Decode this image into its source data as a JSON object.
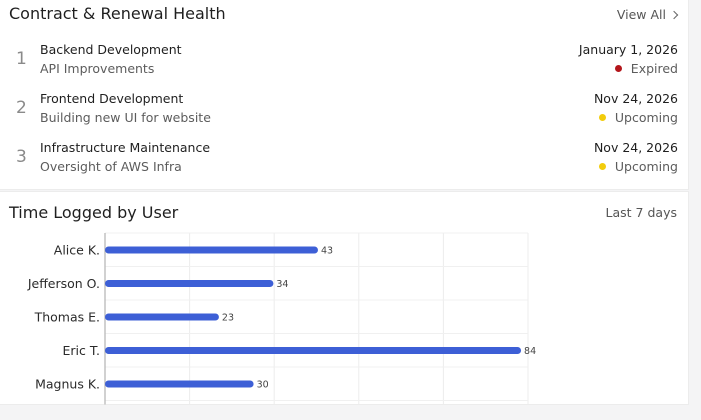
{
  "contracts": {
    "title": "Contract & Renewal Health",
    "view_all": "View All",
    "items": [
      {
        "index": "1",
        "name": "Backend Development",
        "desc": "API Improvements",
        "date": "January 1, 2026",
        "status": "Expired",
        "status_color": "#b3161b"
      },
      {
        "index": "2",
        "name": "Frontend Development",
        "desc": "Building new UI for website",
        "date": "Nov 24, 2026",
        "status": "Upcoming",
        "status_color": "#f2cc0c"
      },
      {
        "index": "3",
        "name": "Infrastructure Maintenance",
        "desc": "Oversight of AWS Infra",
        "date": "Nov 24, 2026",
        "status": "Upcoming",
        "status_color": "#f2cc0c"
      }
    ]
  },
  "timelog": {
    "title": "Time Logged by User",
    "range": "Last 7 days"
  },
  "chart_data": {
    "type": "bar",
    "orientation": "horizontal",
    "categories": [
      "Alice K.",
      "Jefferson O.",
      "Thomas E.",
      "Eric T.",
      "Magnus K."
    ],
    "values": [
      43,
      34,
      23,
      84,
      30
    ],
    "data_labels": [
      "43",
      "34",
      "23",
      "84",
      "30"
    ],
    "xlim": [
      0,
      85
    ],
    "grid": true,
    "bar_color": "#3d5fd6"
  }
}
